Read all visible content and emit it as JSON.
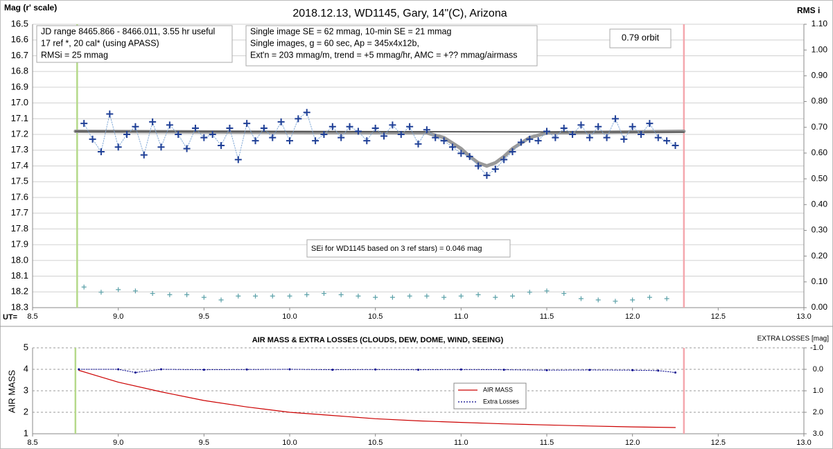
{
  "chart_data": [
    {
      "type": "line",
      "title": "2018.12.13, WD1145, Gary, 14\"(C), Arizona",
      "ylabel": "Mag (r' scale)",
      "y2label": "RMS i",
      "xlabel": "UT=",
      "xlim": [
        8.5,
        13.0
      ],
      "xticks": [
        8.5,
        {
          "value": 9,
          "label": "9.0"
        },
        9.5,
        {
          "value": 10,
          "label": "10.0"
        },
        10.5,
        {
          "value": 11,
          "label": "11.0"
        },
        11.5,
        {
          "value": 12,
          "label": "12.0"
        },
        12.5,
        {
          "value": 13,
          "label": "13.0"
        }
      ],
      "ylim": [
        16.5,
        18.3
      ],
      "y_inverted": true,
      "yticks": [
        16.5,
        16.6,
        16.7,
        16.8,
        16.9,
        {
          "value": 17,
          "label": "17.0"
        },
        17.1,
        17.2,
        17.3,
        17.4,
        17.5,
        17.6,
        17.7,
        17.8,
        17.9,
        {
          "value": 18,
          "label": "18.0"
        },
        18.1,
        18.2,
        18.3
      ],
      "y2lim": [
        0,
        1.1
      ],
      "y2ticks": [
        {
          "value": 0,
          "label": "0.00"
        },
        {
          "value": 0.1,
          "label": "0.10"
        },
        {
          "value": 0.2,
          "label": "0.20"
        },
        {
          "value": 0.3,
          "label": "0.30"
        },
        {
          "value": 0.4,
          "label": "0.40"
        },
        {
          "value": 0.5,
          "label": "0.50"
        },
        {
          "value": 0.6,
          "label": "0.60"
        },
        {
          "value": 0.7,
          "label": "0.70"
        },
        {
          "value": 0.8,
          "label": "0.80"
        },
        {
          "value": 0.9,
          "label": "0.90"
        },
        {
          "value": 1.0,
          "label": "1.00"
        },
        {
          "value": 1.1,
          "label": "1.10"
        }
      ],
      "grid": true,
      "grid_style": "solid",
      "vlines": [
        {
          "x": 8.76,
          "color": "#b5d98a"
        },
        {
          "x": 12.3,
          "color": "#f4a7ad"
        }
      ],
      "annotations": [
        [
          "JD range 8465.866 - 8466.011, 3.55 hr useful",
          "17 ref *, 20 cal* (using APASS)",
          "RMSi = 25 mmag"
        ],
        [
          "Single image SE = 62 mmag, 10-min SE = 21 mmag",
          "Single images, g = 60 sec, Ap = 345x4x12b,",
          "Ext'n = 203 mmag/m, trend = +5 mmag/hr, AMC = +?? mmag/airmass"
        ],
        [
          "0.79 orbit"
        ],
        [
          "SEi for WD1145 based on 3 ref stars) = 0.046 mag"
        ]
      ],
      "series": [
        {
          "color": "#9a9a9a",
          "line": "solid",
          "width": 5,
          "x": [
            8.75,
            10.8,
            10.9,
            11.0,
            11.05,
            11.1,
            11.15,
            11.2,
            11.25,
            11.3,
            11.4,
            11.5,
            12.3
          ],
          "values": [
            17.18,
            17.19,
            17.22,
            17.29,
            17.34,
            17.38,
            17.4,
            17.38,
            17.34,
            17.29,
            17.22,
            17.19,
            17.18
          ]
        },
        {
          "color": "#555555",
          "line": "solid",
          "width": 2,
          "x": [
            8.75,
            12.3
          ],
          "values": [
            17.18,
            17.185
          ]
        },
        {
          "color": "#1f3f96",
          "line": "dotted",
          "line_color": "#7fa7d6",
          "marker": "+",
          "x": [
            8.8,
            8.85,
            8.9,
            8.95,
            9.0,
            9.05,
            9.1,
            9.15,
            9.2,
            9.25,
            9.3,
            9.35,
            9.4,
            9.45,
            9.5,
            9.55,
            9.6,
            9.65,
            9.7,
            9.75,
            9.8,
            9.85,
            9.9,
            9.95,
            10.0,
            10.05,
            10.1,
            10.15,
            10.2,
            10.25,
            10.3,
            10.35,
            10.4,
            10.45,
            10.5,
            10.55,
            10.6,
            10.65,
            10.7,
            10.75,
            10.8,
            10.85,
            10.9,
            10.95,
            11.0,
            11.05,
            11.1,
            11.15,
            11.2,
            11.25,
            11.3,
            11.35,
            11.4,
            11.45,
            11.5,
            11.55,
            11.6,
            11.65,
            11.7,
            11.75,
            11.8,
            11.85,
            11.9,
            11.95,
            12.0,
            12.05,
            12.1,
            12.15,
            12.2,
            12.25
          ],
          "values": [
            17.13,
            17.23,
            17.31,
            17.07,
            17.28,
            17.2,
            17.15,
            17.33,
            17.12,
            17.28,
            17.14,
            17.2,
            17.29,
            17.16,
            17.22,
            17.2,
            17.27,
            17.16,
            17.36,
            17.13,
            17.24,
            17.16,
            17.22,
            17.12,
            17.24,
            17.1,
            17.06,
            17.24,
            17.2,
            17.15,
            17.22,
            17.15,
            17.18,
            17.24,
            17.16,
            17.21,
            17.14,
            17.2,
            17.15,
            17.26,
            17.17,
            17.22,
            17.24,
            17.28,
            17.32,
            17.34,
            17.4,
            17.46,
            17.42,
            17.36,
            17.31,
            17.25,
            17.23,
            17.24,
            17.18,
            17.22,
            17.16,
            17.2,
            17.14,
            17.22,
            17.15,
            17.22,
            17.1,
            17.23,
            17.15,
            17.2,
            17.13,
            17.22,
            17.24,
            17.27
          ]
        },
        {
          "color": "#5aa0a8",
          "marker": "+",
          "axis": "y2",
          "x": [
            8.8,
            8.9,
            9.0,
            9.1,
            9.2,
            9.3,
            9.4,
            9.5,
            9.6,
            9.7,
            9.8,
            9.9,
            10.0,
            10.1,
            10.2,
            10.3,
            10.4,
            10.5,
            10.6,
            10.7,
            10.8,
            10.9,
            11.0,
            11.1,
            11.2,
            11.3,
            11.4,
            11.5,
            11.6,
            11.7,
            11.8,
            11.9,
            12.0,
            12.1,
            12.2
          ],
          "values": [
            0.08,
            0.06,
            0.07,
            0.065,
            0.055,
            0.05,
            0.05,
            0.04,
            0.03,
            0.045,
            0.045,
            0.045,
            0.045,
            0.05,
            0.055,
            0.05,
            0.045,
            0.04,
            0.04,
            0.045,
            0.045,
            0.04,
            0.045,
            0.05,
            0.04,
            0.045,
            0.06,
            0.065,
            0.055,
            0.035,
            0.03,
            0.025,
            0.03,
            0.04,
            0.035
          ]
        }
      ]
    },
    {
      "type": "line",
      "title": "AIR MASS & EXTRA LOSSES (CLOUDS, DEW, DOME, WIND, SEEING)",
      "ylabel": "AIR MASS",
      "y2label": "EXTRA LOSSES [mag]",
      "xlim": [
        8.5,
        13.0
      ],
      "xticks": [
        8.5,
        {
          "value": 9,
          "label": "9.0"
        },
        9.5,
        {
          "value": 10,
          "label": "10.0"
        },
        10.5,
        {
          "value": 11,
          "label": "11.0"
        },
        11.5,
        {
          "value": 12,
          "label": "12.0"
        },
        12.5,
        {
          "value": 13,
          "label": "13.0"
        }
      ],
      "ylim": [
        1,
        5
      ],
      "yticks": [
        1,
        2,
        3,
        4,
        5
      ],
      "y2lim": [
        -1,
        3
      ],
      "y2_inverted": true,
      "y2ticks": [
        {
          "value": -1,
          "label": "-1.0"
        },
        {
          "value": 0,
          "label": "0.0"
        },
        {
          "value": 1,
          "label": "1.0"
        },
        {
          "value": 2,
          "label": "2.0"
        },
        {
          "value": 3,
          "label": "3.0"
        }
      ],
      "grid": true,
      "grid_style": "dashed",
      "legend": "center",
      "vlines": [
        {
          "x": 8.75,
          "color": "#b5d98a"
        },
        {
          "x": 12.3,
          "color": "#f4a7ad"
        }
      ],
      "series": [
        {
          "name": "AIR MASS",
          "color": "#cc0000",
          "line": "solid",
          "width": 1.2,
          "x": [
            8.77,
            9.0,
            9.25,
            9.5,
            9.75,
            10.0,
            10.25,
            10.5,
            10.75,
            11.0,
            11.25,
            11.5,
            11.75,
            12.0,
            12.25
          ],
          "values": [
            3.95,
            3.4,
            2.95,
            2.55,
            2.25,
            2.0,
            1.85,
            1.7,
            1.6,
            1.53,
            1.46,
            1.41,
            1.36,
            1.32,
            1.29
          ]
        },
        {
          "name": "Extra Losses",
          "color": "#00008b",
          "line": "dotted",
          "marker": "dot",
          "axis": "y2",
          "x": [
            8.77,
            9.0,
            9.1,
            9.25,
            9.5,
            9.75,
            10.0,
            10.25,
            10.5,
            10.75,
            11.0,
            11.25,
            11.5,
            11.75,
            12.0,
            12.15,
            12.25
          ],
          "values": [
            0.0,
            0.0,
            0.15,
            0.0,
            0.02,
            0.01,
            0.0,
            0.02,
            0.01,
            0.02,
            0.01,
            0.02,
            0.04,
            0.03,
            0.04,
            0.06,
            0.15
          ]
        }
      ]
    }
  ]
}
